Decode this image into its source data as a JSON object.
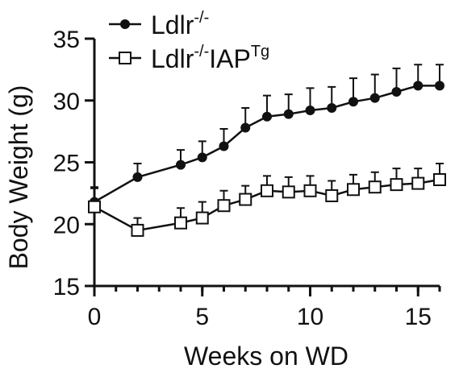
{
  "chart_data": {
    "type": "line",
    "title": "",
    "xlabel": "Weeks on WD",
    "ylabel": "Body Weight (g)",
    "xlim": [
      0,
      16
    ],
    "ylim": [
      15,
      35
    ],
    "xticks": [
      0,
      5,
      10,
      15
    ],
    "yticks": [
      15,
      20,
      25,
      30,
      35
    ],
    "grid": false,
    "legend_position": "top-left",
    "series": [
      {
        "name": "Ldlr",
        "name_sup": "-/-",
        "name_suffix": "",
        "name_suffix_sup": "",
        "marker": "filled-circle",
        "color": "#111111",
        "x": [
          0,
          2,
          4,
          5,
          6,
          7,
          8,
          9,
          10,
          11,
          12,
          13,
          14,
          15,
          16
        ],
        "y": [
          21.8,
          23.8,
          24.8,
          25.4,
          26.3,
          27.8,
          28.7,
          28.9,
          29.2,
          29.4,
          29.9,
          30.2,
          30.7,
          31.2,
          31.2
        ],
        "error": [
          1.2,
          1.1,
          1.2,
          1.3,
          1.4,
          1.6,
          1.7,
          1.6,
          1.8,
          1.7,
          1.9,
          1.9,
          1.9,
          1.7,
          1.7
        ]
      },
      {
        "name": "Ldlr",
        "name_sup": "-/-",
        "name_suffix": "IAP",
        "name_suffix_sup": "Tg",
        "marker": "open-square",
        "color": "#111111",
        "x": [
          0,
          2,
          4,
          5,
          6,
          7,
          8,
          9,
          10,
          11,
          12,
          13,
          14,
          15,
          16
        ],
        "y": [
          21.4,
          19.5,
          20.1,
          20.5,
          21.5,
          22.0,
          22.7,
          22.6,
          22.7,
          22.3,
          22.8,
          23.0,
          23.2,
          23.3,
          23.6
        ],
        "error": [
          1.5,
          1.0,
          1.2,
          1.3,
          1.2,
          1.1,
          1.2,
          1.2,
          1.2,
          1.2,
          1.2,
          1.2,
          1.3,
          1.2,
          1.3
        ]
      }
    ]
  }
}
